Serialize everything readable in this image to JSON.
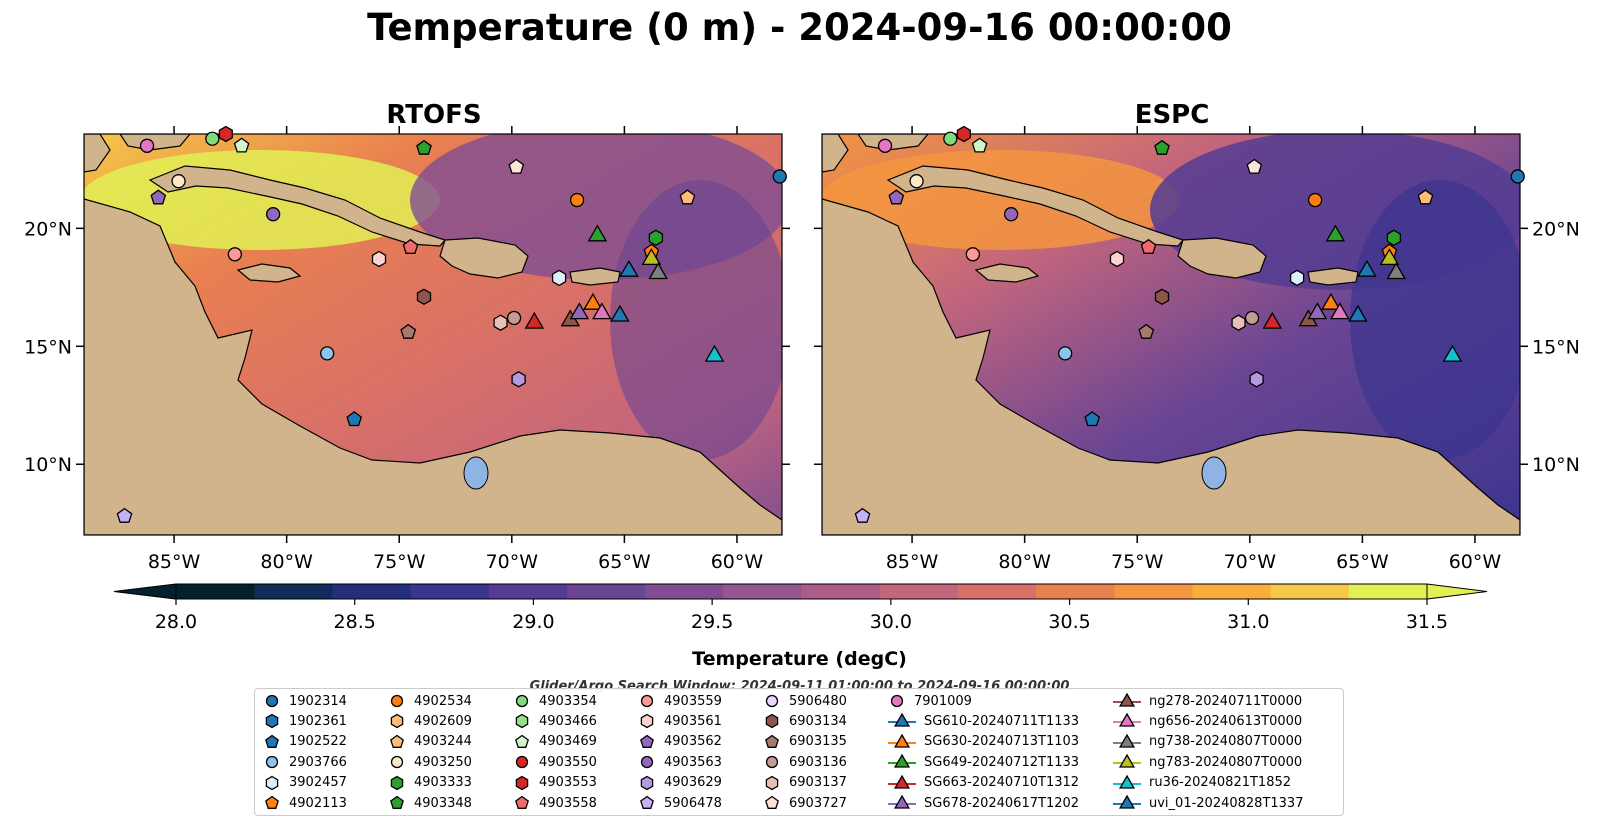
{
  "chart_data": {
    "type": "map",
    "title": "Temperature (0 m) - 2024-09-16 00:00:00",
    "panels": [
      {
        "title": "RTOFS"
      },
      {
        "title": "ESPC"
      }
    ],
    "lon_ticks": [
      "85°W",
      "80°W",
      "75°W",
      "70°W",
      "65°W",
      "60°W"
    ],
    "lon_values": [
      -85,
      -80,
      -75,
      -70,
      -65,
      -60
    ],
    "lat_ticks": [
      "20°N",
      "15°N",
      "10°N"
    ],
    "lat_values": [
      20,
      15,
      10
    ],
    "lon_range": [
      -89,
      -58
    ],
    "lat_range": [
      7,
      24
    ],
    "colorbar": {
      "label": "Temperature (degC)",
      "ticks": [
        "28.0",
        "28.5",
        "29.0",
        "29.5",
        "30.0",
        "30.5",
        "31.0",
        "31.5"
      ],
      "values": [
        28.0,
        28.5,
        29.0,
        29.5,
        30.0,
        30.5,
        31.0,
        31.5
      ],
      "range": [
        28.0,
        31.5
      ],
      "extend": "both",
      "colors": [
        "#04202c",
        "#0f2c5a",
        "#252e7a",
        "#3c348e",
        "#543c93",
        "#6a4593",
        "#804d92",
        "#95558f",
        "#ab5d88",
        "#c2657d",
        "#d87068",
        "#e98050",
        "#f49540",
        "#f8ad3c",
        "#f5c847",
        "#e2f055"
      ]
    },
    "search_window": "Glider/Argo Search Window: 2024-09-11 01:00:00 to 2024-09-16 00:00:00",
    "legend": [
      {
        "label": "1902314",
        "marker": "circle",
        "color": "#1f77b4"
      },
      {
        "label": "1902361",
        "marker": "hexagon",
        "color": "#1f77b4"
      },
      {
        "label": "1902522",
        "marker": "pentagon",
        "color": "#1f77b4"
      },
      {
        "label": "2903766",
        "marker": "circle",
        "color": "#8ec4ec"
      },
      {
        "label": "3902457",
        "marker": "hexagon",
        "color": "#ddeefa"
      },
      {
        "label": "4902113",
        "marker": "pentagon",
        "color": "#ff7f0e"
      },
      {
        "label": "4902534",
        "marker": "circle",
        "color": "#ff7f0e"
      },
      {
        "label": "4902609",
        "marker": "hexagon",
        "color": "#ffbb78"
      },
      {
        "label": "4903244",
        "marker": "pentagon",
        "color": "#ffbb78"
      },
      {
        "label": "4903250",
        "marker": "circle",
        "color": "#ffe8c8"
      },
      {
        "label": "4903333",
        "marker": "hexagon",
        "color": "#2ca02c"
      },
      {
        "label": "4903348",
        "marker": "pentagon",
        "color": "#2ca02c"
      },
      {
        "label": "4903354",
        "marker": "circle",
        "color": "#7fdb7f"
      },
      {
        "label": "4903466",
        "marker": "hexagon",
        "color": "#98df8a"
      },
      {
        "label": "4903469",
        "marker": "pentagon",
        "color": "#d2f5c8"
      },
      {
        "label": "4903550",
        "marker": "circle",
        "color": "#d62728"
      },
      {
        "label": "4903553",
        "marker": "hexagon",
        "color": "#d62728"
      },
      {
        "label": "4903558",
        "marker": "pentagon",
        "color": "#ef6a6b"
      },
      {
        "label": "4903559",
        "marker": "circle",
        "color": "#ff9896"
      },
      {
        "label": "4903561",
        "marker": "hexagon",
        "color": "#ffd2d2"
      },
      {
        "label": "4903562",
        "marker": "pentagon",
        "color": "#9467bd"
      },
      {
        "label": "4903563",
        "marker": "circle",
        "color": "#9467bd"
      },
      {
        "label": "4903629",
        "marker": "hexagon",
        "color": "#b49ae0"
      },
      {
        "label": "5906478",
        "marker": "pentagon",
        "color": "#c5b0f5"
      },
      {
        "label": "5906480",
        "marker": "circle",
        "color": "#e8d8fb"
      },
      {
        "label": "6903134",
        "marker": "hexagon",
        "color": "#8c564b"
      },
      {
        "label": "6903135",
        "marker": "pentagon",
        "color": "#a87a6e"
      },
      {
        "label": "6903136",
        "marker": "circle",
        "color": "#c49c94"
      },
      {
        "label": "6903137",
        "marker": "hexagon",
        "color": "#e8bfb6"
      },
      {
        "label": "6903727",
        "marker": "pentagon",
        "color": "#ffe2dc"
      },
      {
        "label": "7901009",
        "marker": "circle",
        "color": "#e377c2"
      },
      {
        "label": "SG610-20240711T1133",
        "marker": "triangle",
        "color": "#1f77b4"
      },
      {
        "label": "SG630-20240713T1103",
        "marker": "triangle",
        "color": "#ff7f0e"
      },
      {
        "label": "SG649-20240712T1133",
        "marker": "triangle",
        "color": "#2ca02c"
      },
      {
        "label": "SG663-20240710T1312",
        "marker": "triangle",
        "color": "#d62728"
      },
      {
        "label": "SG678-20240617T1202",
        "marker": "triangle",
        "color": "#9467bd"
      },
      {
        "label": "ng278-20240711T0000",
        "marker": "triangle",
        "color": "#8c564b"
      },
      {
        "label": "ng656-20240613T0000",
        "marker": "triangle",
        "color": "#e377c2"
      },
      {
        "label": "ng738-20240807T0000",
        "marker": "triangle",
        "color": "#7f7f7f"
      },
      {
        "label": "ng783-20240807T0000",
        "marker": "triangle",
        "color": "#bcbd22"
      },
      {
        "label": "ru36-20240821T1852",
        "marker": "triangle",
        "color": "#17becf"
      },
      {
        "label": "uvi_01-20240828T1337",
        "marker": "triangle",
        "color": "#1f77b4"
      }
    ],
    "observations": [
      {
        "id": "1902314",
        "lon": -58.1,
        "lat": 22.2
      },
      {
        "id": "7901009",
        "lon": -86.2,
        "lat": 23.5
      },
      {
        "id": "4903250",
        "lon": -84.8,
        "lat": 22.0
      },
      {
        "id": "4903354",
        "lon": -83.3,
        "lat": 23.8
      },
      {
        "id": "4903469",
        "lon": -82.0,
        "lat": 23.5
      },
      {
        "id": "4903553",
        "lon": -82.7,
        "lat": 24.0
      },
      {
        "id": "4903562",
        "lon": -85.7,
        "lat": 21.3
      },
      {
        "id": "4903563",
        "lon": -80.6,
        "lat": 20.6
      },
      {
        "id": "4903559",
        "lon": -82.3,
        "lat": 18.9
      },
      {
        "id": "4903348",
        "lon": -73.9,
        "lat": 23.4
      },
      {
        "id": "6903727",
        "lon": -69.8,
        "lat": 22.6
      },
      {
        "id": "4902534",
        "lon": -67.1,
        "lat": 21.2
      },
      {
        "id": "4903244",
        "lon": -62.2,
        "lat": 21.3
      },
      {
        "id": "4903558",
        "lon": -74.5,
        "lat": 19.2
      },
      {
        "id": "4903561",
        "lon": -75.9,
        "lat": 18.7
      },
      {
        "id": "3902457",
        "lon": -67.9,
        "lat": 17.9
      },
      {
        "id": "4903333",
        "lon": -63.6,
        "lat": 19.6
      },
      {
        "id": "4902113",
        "lon": -63.8,
        "lat": 19.0
      },
      {
        "id": "6903134",
        "lon": -73.9,
        "lat": 17.1
      },
      {
        "id": "6903135",
        "lon": -74.6,
        "lat": 15.6
      },
      {
        "id": "6903137",
        "lon": -70.5,
        "lat": 16.0
      },
      {
        "id": "6903136",
        "lon": -69.9,
        "lat": 16.2
      },
      {
        "id": "2903766",
        "lon": -78.2,
        "lat": 14.7
      },
      {
        "id": "4903629",
        "lon": -69.7,
        "lat": 13.6
      },
      {
        "id": "1902522",
        "lon": -77.0,
        "lat": 11.9
      },
      {
        "id": "5906478",
        "lon": -87.2,
        "lat": 7.8
      }
    ],
    "gliders": [
      {
        "id": "SG649-20240712T1133",
        "lon": -66.2,
        "lat": 19.6
      },
      {
        "id": "ng783-20240807T0000",
        "lon": -63.8,
        "lat": 18.6
      },
      {
        "id": "uvi_01-20240828T1337",
        "lon": -64.8,
        "lat": 18.1
      },
      {
        "id": "ng738-20240807T0000",
        "lon": -63.5,
        "lat": 18.0
      },
      {
        "id": "SG630-20240713T1103",
        "lon": -66.4,
        "lat": 16.7
      },
      {
        "id": "SG663-20240710T1312",
        "lon": -69.0,
        "lat": 15.9
      },
      {
        "id": "ng278-20240711T0000",
        "lon": -67.4,
        "lat": 16.0
      },
      {
        "id": "SG678-20240617T1202",
        "lon": -67.0,
        "lat": 16.3
      },
      {
        "id": "ng656-20240613T0000",
        "lon": -66.0,
        "lat": 16.3
      },
      {
        "id": "SG610-20240711T1133",
        "lon": -65.2,
        "lat": 16.2
      },
      {
        "id": "ru36-20240821T1852",
        "lon": -61.0,
        "lat": 14.5
      }
    ]
  }
}
